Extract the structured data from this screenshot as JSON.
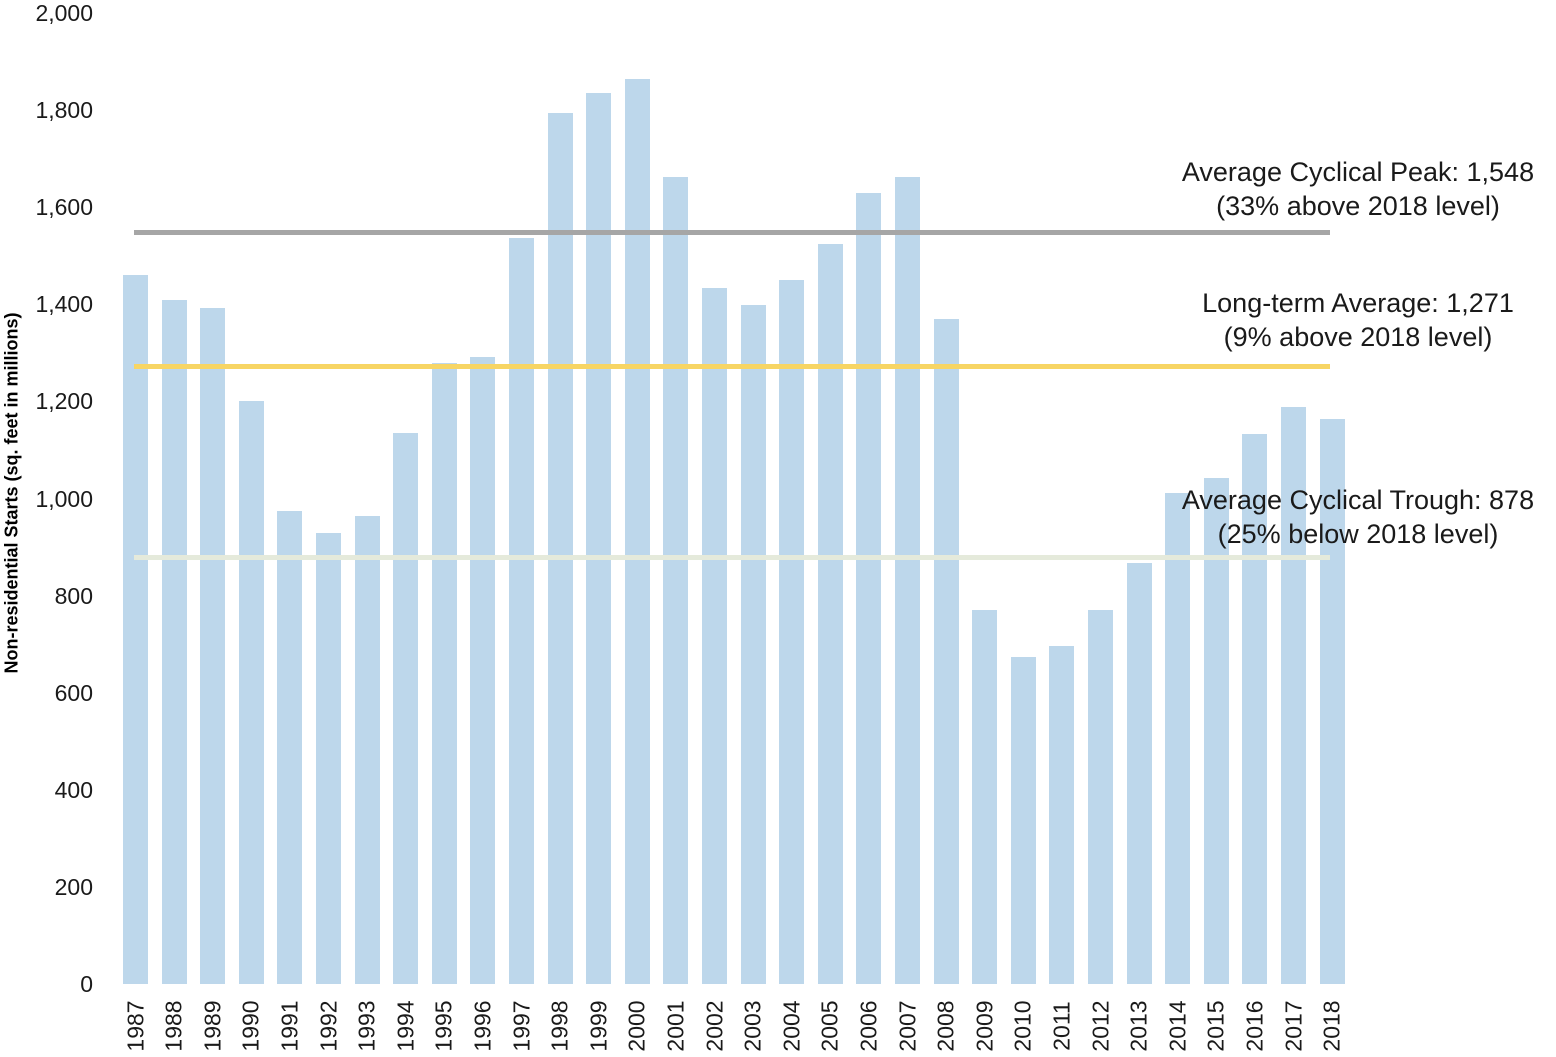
{
  "chart_data": {
    "type": "bar",
    "title": "",
    "xlabel": "",
    "ylabel": "Non-residential Starts (sq. feet in millions)",
    "ylim": [
      0,
      2000
    ],
    "grid": false,
    "legend": "none",
    "bar_color": "#bdd7eb",
    "yticks": [
      {
        "value": 0,
        "label": "0"
      },
      {
        "value": 200,
        "label": "200"
      },
      {
        "value": 400,
        "label": "400"
      },
      {
        "value": 600,
        "label": "600"
      },
      {
        "value": 800,
        "label": "800"
      },
      {
        "value": 1000,
        "label": "1,000"
      },
      {
        "value": 1200,
        "label": "1,200"
      },
      {
        "value": 1400,
        "label": "1,400"
      },
      {
        "value": 1600,
        "label": "1,600"
      },
      {
        "value": 1800,
        "label": "1,800"
      },
      {
        "value": 2000,
        "label": "2,000"
      }
    ],
    "categories": [
      "1987",
      "1988",
      "1989",
      "1990",
      "1991",
      "1992",
      "1993",
      "1994",
      "1995",
      "1996",
      "1997",
      "1998",
      "1999",
      "2000",
      "2001",
      "2002",
      "2003",
      "2004",
      "2005",
      "2006",
      "2007",
      "2008",
      "2009",
      "2010",
      "2011",
      "2012",
      "2013",
      "2014",
      "2015",
      "2016",
      "2017",
      "2018"
    ],
    "values": [
      1460,
      1408,
      1393,
      1200,
      975,
      928,
      963,
      1135,
      1280,
      1292,
      1537,
      1795,
      1836,
      1865,
      1663,
      1434,
      1399,
      1450,
      1524,
      1630,
      1663,
      1369,
      771,
      674,
      697,
      771,
      868,
      1011,
      1043,
      1132,
      1188,
      1164
    ],
    "reference_lines": [
      {
        "name": "average-cyclical-peak",
        "value": 1548,
        "color": "#a6a6a6",
        "label_line1": "Average Cyclical Peak: 1,548",
        "label_line2": "(33% above 2018 level)"
      },
      {
        "name": "long-term-average",
        "value": 1271,
        "color": "#f7d564",
        "label_line1": "Long-term Average: 1,271",
        "label_line2": "(9% above 2018 level)"
      },
      {
        "name": "average-cyclical-trough",
        "value": 878,
        "color": "#e5eadb",
        "label_line1": "Average Cyclical Trough: 878",
        "label_line2": "(25% below 2018 level)"
      }
    ]
  }
}
